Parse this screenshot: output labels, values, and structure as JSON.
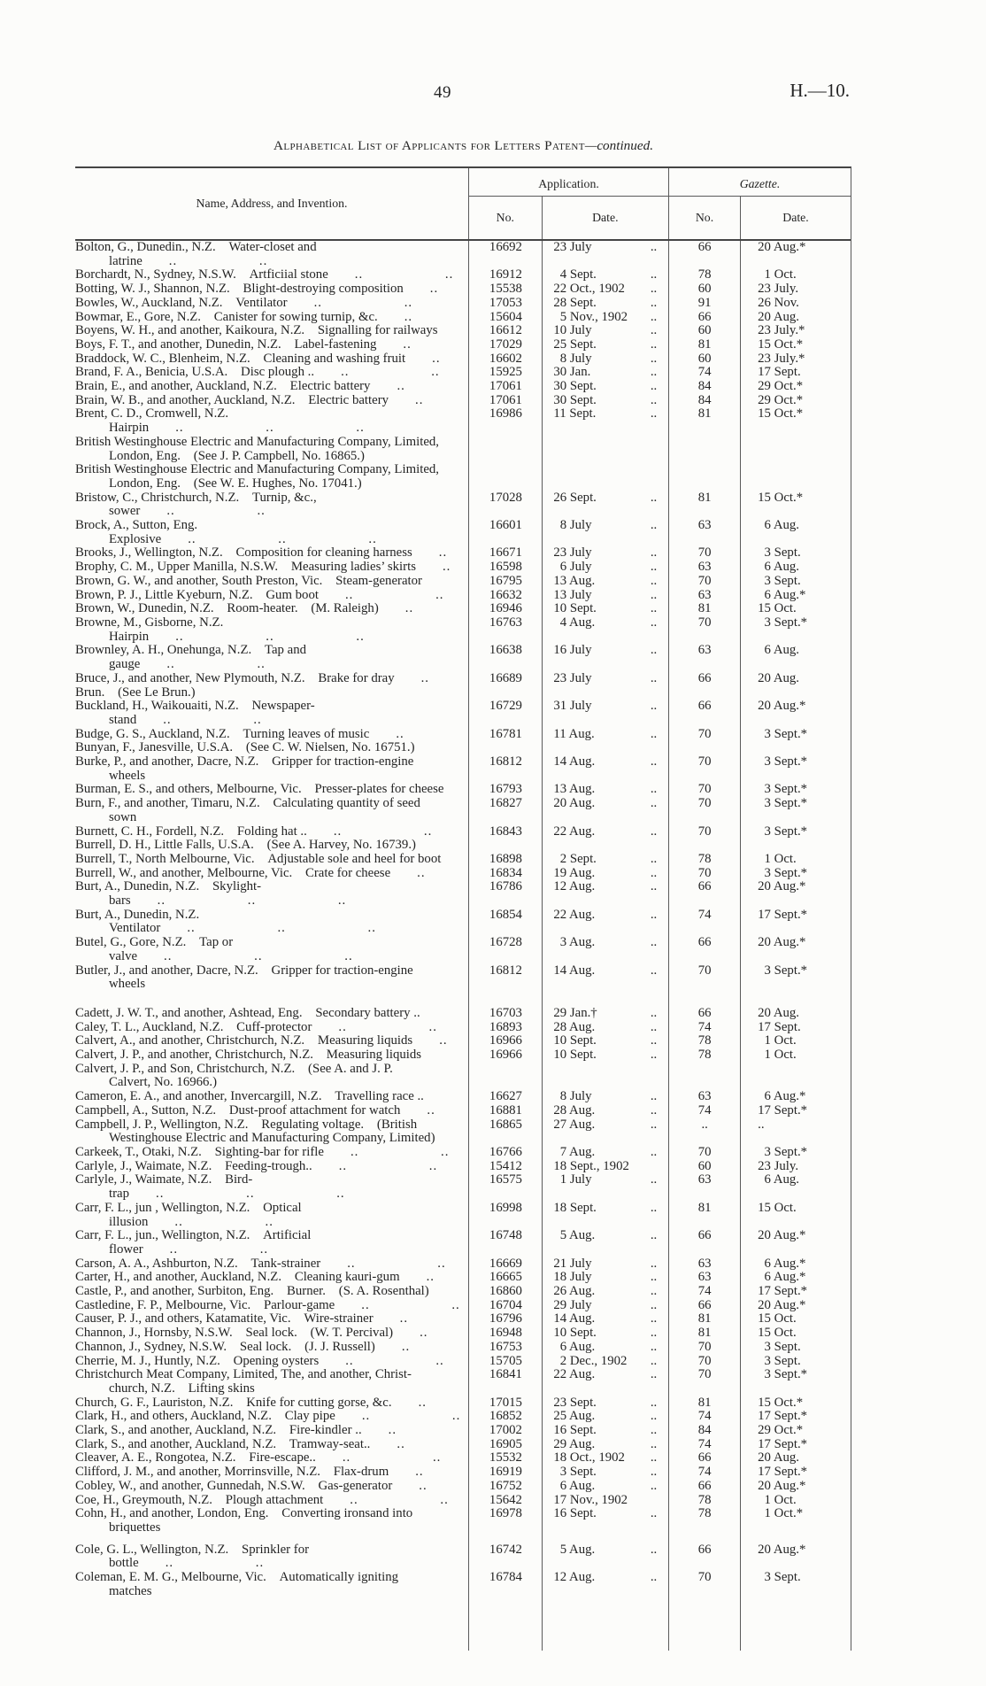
{
  "page": {
    "number": "49",
    "doc_ref": "H.—10."
  },
  "title": {
    "main": "Alphabetical List of Applicants for Letters Patent",
    "continued": "—continued."
  },
  "table": {
    "col_name_header": "Name, Address, and Invention.",
    "group_application": "Application.",
    "group_gazette": "Gazette.",
    "sub_app_no": "No.",
    "sub_app_date": "Date.",
    "sub_gaz_no": "No.",
    "sub_gaz_date": "Date.",
    "rows": [
      {
        "n": "Bolton, G., Dunedin., N.Z. Water-closet and latrine",
        "l": ".. ..",
        "an": "16692",
        "ad": "23 July",
        "adl": "..",
        "gn": "66",
        "gd": "20 Aug.*"
      },
      {
        "n": "Borchardt, N., Sydney, N.S.W. Artficiial stone",
        "l": ".. ..",
        "an": "16912",
        "ad": " 4 Sept.",
        "adl": "..",
        "gn": "78",
        "gd": " 1 Oct."
      },
      {
        "n": "Botting, W. J., Shannon, N.Z. Blight-destroying composition",
        "l": "..",
        "an": "15538",
        "ad": "22 Oct., 1902",
        "adl": "..",
        "gn": "60",
        "gd": "23 July."
      },
      {
        "n": "Bowles, W., Auckland, N.Z. Ventilator",
        "l": ".. ..",
        "an": "17053",
        "ad": "28 Sept.",
        "adl": "..",
        "gn": "91",
        "gd": "26 Nov."
      },
      {
        "n": "Bowmar, E., Gore, N.Z. Canister for sowing turnip, &c.",
        "l": "..",
        "an": "15604",
        "ad": " 5 Nov., 1902",
        "adl": "..",
        "gn": "66",
        "gd": "20 Aug."
      },
      {
        "n": "Boyens, W. H., and another, Kaikoura, N.Z. Signalling for railways",
        "l": "",
        "an": "16612",
        "ad": "10 July",
        "adl": "..",
        "gn": "60",
        "gd": "23 July.*"
      },
      {
        "n": "Boys, F. T., and another, Dunedin, N.Z. Label-fastening",
        "l": "..",
        "an": "17029",
        "ad": "25 Sept.",
        "adl": "..",
        "gn": "81",
        "gd": "15 Oct.*"
      },
      {
        "n": "Braddock, W. C., Blenheim, N.Z. Cleaning and washing fruit",
        "l": "..",
        "an": "16602",
        "ad": " 8 July",
        "adl": "..",
        "gn": "60",
        "gd": "23 July.*"
      },
      {
        "n": "Brand, F. A., Benicia, U.S.A. Disc plough ..",
        "l": ".. ..",
        "an": "15925",
        "ad": "30 Jan.",
        "adl": "..",
        "gn": "74",
        "gd": "17 Sept."
      },
      {
        "n": "Brain, E., and another, Auckland, N.Z. Electric battery",
        "l": "..",
        "an": "17061",
        "ad": "30 Sept.",
        "adl": "..",
        "gn": "84",
        "gd": "29 Oct.*"
      },
      {
        "n": "Brain, W. B., and another, Auckland, N.Z. Electric battery",
        "l": "..",
        "an": "17061",
        "ad": "30 Sept.",
        "adl": "..",
        "gn": "84",
        "gd": "29 Oct.*"
      },
      {
        "n": "Brent, C. D., Cromwell, N.Z. Hairpin",
        "l": ".. .. ..",
        "an": "16986",
        "ad": "11 Sept.",
        "adl": "..",
        "gn": "81",
        "gd": "15 Oct.*"
      },
      {
        "n": "British Westinghouse Electric and Manufacturing Company, Limited,",
        "n2": "London, Eng. (See J. P. Campbell, No. 16865.)"
      },
      {
        "n": "British Westinghouse Electric and Manufacturing Company, Limited,",
        "n2": "London, Eng. (See W. E. Hughes, No. 17041.)"
      },
      {
        "n": "Bristow, C., Christchurch, N.Z. Turnip, &c., sower",
        "l": ".. ..",
        "an": "17028",
        "ad": "26 Sept.",
        "adl": "..",
        "gn": "81",
        "gd": "15 Oct.*"
      },
      {
        "n": "Brock, A., Sutton, Eng. Explosive",
        "l": ".. .. ..",
        "an": "16601",
        "ad": " 8 July",
        "adl": "..",
        "gn": "63",
        "gd": " 6 Aug."
      },
      {
        "n": "Brooks, J., Wellington, N.Z. Composition for cleaning harness",
        "l": "..",
        "an": "16671",
        "ad": "23 July",
        "adl": "..",
        "gn": "70",
        "gd": " 3 Sept."
      },
      {
        "n": "Brophy, C. M., Upper Manilla, N.S.W. Measuring ladies’ skirts",
        "l": "..",
        "an": "16598",
        "ad": " 6 July",
        "adl": "..",
        "gn": "63",
        "gd": " 6 Aug."
      },
      {
        "n": "Brown, G. W., and another, South Preston, Vic. Steam-generator",
        "l": "",
        "an": "16795",
        "ad": "13 Aug.",
        "adl": "..",
        "gn": "70",
        "gd": " 3 Sept."
      },
      {
        "n": "Brown, P. J., Little Kyeburn, N.Z. Gum boot",
        "l": ".. ..",
        "an": "16632",
        "ad": "13 July",
        "adl": "..",
        "gn": "63",
        "gd": " 6 Aug.*"
      },
      {
        "n": "Brown, W., Dunedin, N.Z. Room-heater. (M. Raleigh)",
        "l": "..",
        "an": "16946",
        "ad": "10 Sept.",
        "adl": "..",
        "gn": "81",
        "gd": "15 Oct."
      },
      {
        "n": "Browne, M., Gisborne, N.Z. Hairpin",
        "l": ".. .. ..",
        "an": "16763",
        "ad": " 4 Aug.",
        "adl": "..",
        "gn": "70",
        "gd": " 3 Sept.*"
      },
      {
        "n": "Brownley, A. H., Onehunga, N.Z. Tap and gauge",
        "l": ".. ..",
        "an": "16638",
        "ad": "16 July",
        "adl": "..",
        "gn": "63",
        "gd": " 6 Aug."
      },
      {
        "n": "Bruce, J., and another, New Plymouth, N.Z. Brake for dray",
        "l": "..",
        "an": "16689",
        "ad": "23 July",
        "adl": "..",
        "gn": "66",
        "gd": "20 Aug."
      },
      {
        "n": "Brun. (See Le Brun.)"
      },
      {
        "n": "Buckland, H., Waikouaiti, N.Z. Newspaper-stand",
        "l": ".. ..",
        "an": "16729",
        "ad": "31 July",
        "adl": "..",
        "gn": "66",
        "gd": "20 Aug.*"
      },
      {
        "n": "Budge, G. S., Auckland, N.Z. Turning leaves of music",
        "l": "..",
        "an": "16781",
        "ad": "11 Aug.",
        "adl": "..",
        "gn": "70",
        "gd": " 3 Sept.*"
      },
      {
        "n": "Bunyan, F., Janesville, U.S.A. (See C. W. Nielsen, No. 16751.)"
      },
      {
        "n": "Burke, P., and another, Dacre, N.Z. Gripper for traction-engine",
        "n2": "wheels",
        "an": "16812",
        "ad": "14 Aug.",
        "adl": "..",
        "gn": "70",
        "gd": " 3 Sept.*"
      },
      {
        "n": "Burman, E. S., and others, Melbourne, Vic. Presser-plates for cheese",
        "an": "16793",
        "ad": "13 Aug.",
        "adl": "..",
        "gn": "70",
        "gd": " 3 Sept.*"
      },
      {
        "n": "Burn, F., and another, Timaru, N.Z. Calculating quantity of seed",
        "n2": "sown",
        "an": "16827",
        "ad": "20 Aug.",
        "adl": "..",
        "gn": "70",
        "gd": " 3 Sept.*"
      },
      {
        "n": "Burnett, C. H., Fordell, N.Z. Folding hat ..",
        "l": ".. ..",
        "an": "16843",
        "ad": "22 Aug.",
        "adl": "..",
        "gn": "70",
        "gd": " 3 Sept.*"
      },
      {
        "n": "Burrell, D. H., Little Falls, U.S.A. (See A. Harvey, No. 16739.)"
      },
      {
        "n": "Burrell, T., North Melbourne, Vic. Adjustable sole and heel for boot",
        "an": "16898",
        "ad": " 2 Sept.",
        "adl": "..",
        "gn": "78",
        "gd": " 1 Oct."
      },
      {
        "n": "Burrell, W., and another, Melbourne, Vic. Crate for cheese",
        "l": "..",
        "an": "16834",
        "ad": "19 Aug.",
        "adl": "..",
        "gn": "70",
        "gd": " 3 Sept.*"
      },
      {
        "n": "Burt, A., Dunedin, N.Z. Skylight-bars",
        "l": ".. .. ..",
        "an": "16786",
        "ad": "12 Aug.",
        "adl": "..",
        "gn": "66",
        "gd": "20 Aug.*"
      },
      {
        "n": "Burt, A., Dunedin, N.Z. Ventilator",
        "l": ".. .. ..",
        "an": "16854",
        "ad": "22 Aug.",
        "adl": "..",
        "gn": "74",
        "gd": "17 Sept.*"
      },
      {
        "n": "Butel, G., Gore, N.Z. Tap or valve",
        "l": ".. .. ..",
        "an": "16728",
        "ad": " 3 Aug.",
        "adl": "..",
        "gn": "66",
        "gd": "20 Aug.*"
      },
      {
        "n": "Butler, J., and another, Dacre, N.Z. Gripper for traction-engine",
        "n2": "wheels",
        "an": "16812",
        "ad": "14 Aug.",
        "adl": "..",
        "gn": "70",
        "gd": " 3 Sept.*"
      },
      {
        "gap": true,
        "n": "Cadett, J. W. T., and another, Ashtead, Eng. Secondary battery ..",
        "an": "16703",
        "ad": "29 Jan.†",
        "adl": "..",
        "gn": "66",
        "gd": "20 Aug."
      },
      {
        "n": "Caley, T. L., Auckland, N.Z. Cuff-protector",
        "l": ".. ..",
        "an": "16893",
        "ad": "28 Aug.",
        "adl": "..",
        "gn": "74",
        "gd": "17 Sept."
      },
      {
        "n": "Calvert, A., and another, Christchurch, N.Z. Measuring liquids",
        "l": "..",
        "an": "16966",
        "ad": "10 Sept.",
        "adl": "..",
        "gn": "78",
        "gd": " 1 Oct."
      },
      {
        "n": "Calvert, J. P., and another, Christchurch, N.Z. Measuring liquids",
        "an": "16966",
        "ad": "10 Sept.",
        "adl": "..",
        "gn": "78",
        "gd": " 1 Oct."
      },
      {
        "n": "Calvert, J. P., and Son, Christchurch, N.Z. (See A. and J. P.",
        "n2": "Calvert, No. 16966.)"
      },
      {
        "n": "Cameron, E. A., and another, Invercargill, N.Z. Travelling race ..",
        "an": "16627",
        "ad": " 8 July",
        "adl": "..",
        "gn": "63",
        "gd": " 6 Aug.*"
      },
      {
        "n": "Campbell, A., Sutton, N.Z. Dust-proof attachment for watch",
        "l": "..",
        "an": "16881",
        "ad": "28 Aug.",
        "adl": "..",
        "gn": "74",
        "gd": "17 Sept.*"
      },
      {
        "n": "Campbell, J. P., Wellington, N.Z. Regulating voltage. (British",
        "n2": "Westinghouse Electric and Manufacturing Company, Limited)",
        "an": "16865",
        "ad": "27 Aug.",
        "adl": "..",
        "gn": "..",
        "gd": ".."
      },
      {
        "n": "Carkeek, T., Otaki, N.Z. Sighting-bar for rifle",
        "l": ".. ..",
        "an": "16766",
        "ad": " 7 Aug.",
        "adl": "..",
        "gn": "70",
        "gd": " 3 Sept.*"
      },
      {
        "n": "Carlyle, J., Waimate, N.Z. Feeding-trough..",
        "l": ".. ..",
        "an": "15412",
        "ad": "18 Sept., 1902",
        "adl": "",
        "gn": "60",
        "gd": "23 July."
      },
      {
        "n": "Carlyle, J., Waimate, N.Z. Bird-trap",
        "l": ".. .. ..",
        "an": "16575",
        "ad": " 1 July",
        "adl": "..",
        "gn": "63",
        "gd": " 6 Aug."
      },
      {
        "n": "Carr, F. L., jun , Wellington, N.Z. Optical illusion",
        "l": ".. ..",
        "an": "16998",
        "ad": "18 Sept.",
        "adl": "..",
        "gn": "81",
        "gd": "15 Oct."
      },
      {
        "n": "Carr, F. L., jun., Wellington, N.Z. Artificial flower",
        "l": ".. ..",
        "an": "16748",
        "ad": " 5 Aug.",
        "adl": "..",
        "gn": "66",
        "gd": "20 Aug.*"
      },
      {
        "n": "Carson, A. A., Ashburton, N.Z. Tank-strainer",
        "l": ".. ..",
        "an": "16669",
        "ad": "21 July",
        "adl": "..",
        "gn": "63",
        "gd": " 6 Aug.*"
      },
      {
        "n": "Carter, H., and another, Auckland, N.Z. Cleaning kauri-gum",
        "l": "..",
        "an": "16665",
        "ad": "18 July",
        "adl": "..",
        "gn": "63",
        "gd": " 6 Aug.*"
      },
      {
        "n": "Castle, P., and another, Surbiton, Eng. Burner. (S. A. Rosenthal)",
        "an": "16860",
        "ad": "26 Aug.",
        "adl": "..",
        "gn": "74",
        "gd": "17 Sept.*"
      },
      {
        "n": "Castledine, F. P., Melbourne, Vic. Parlour-game",
        "l": ".. ..",
        "an": "16704",
        "ad": "29 July",
        "adl": "..",
        "gn": "66",
        "gd": "20 Aug.*"
      },
      {
        "n": "Causer, P. J., and others, Katamatite, Vic. Wire-strainer",
        "l": "..",
        "an": "16796",
        "ad": "14 Aug.",
        "adl": "..",
        "gn": "81",
        "gd": "15 Oct."
      },
      {
        "n": "Channon, J., Hornsby, N.S.W. Seal lock. (W. T. Percival)",
        "l": "..",
        "an": "16948",
        "ad": "10 Sept.",
        "adl": "..",
        "gn": "81",
        "gd": "15 Oct."
      },
      {
        "n": "Channon, J., Sydney, N.S.W. Seal lock. (J. J. Russell)",
        "l": "..",
        "an": "16753",
        "ad": " 6 Aug.",
        "adl": "..",
        "gn": "70",
        "gd": " 3 Sept."
      },
      {
        "n": "Cherrie, M. J., Huntly, N.Z. Opening oysters",
        "l": ".. ..",
        "an": "15705",
        "ad": " 2 Dec., 1902",
        "adl": "..",
        "gn": "70",
        "gd": " 3 Sept."
      },
      {
        "n": "Christchurch Meat Company, Limited, The, and another, Christ-",
        "n2": "church, N.Z. Lifting skins",
        "an": "16841",
        "ad": "22 Aug.",
        "adl": "..",
        "gn": "70",
        "gd": " 3 Sept.*"
      },
      {
        "n": "Church, G. F., Lauriston, N.Z. Knife for cutting gorse, &c.",
        "l": "..",
        "an": "17015",
        "ad": "23 Sept.",
        "adl": "..",
        "gn": "81",
        "gd": "15 Oct.*"
      },
      {
        "n": "Clark, H., and others, Auckland, N.Z. Clay pipe",
        "l": ".. ..",
        "an": "16852",
        "ad": "25 Aug.",
        "adl": "..",
        "gn": "74",
        "gd": "17 Sept.*"
      },
      {
        "n": "Clark, S., and another, Auckland, N.Z. Fire-kindler ..",
        "l": "..",
        "an": "17002",
        "ad": "16 Sept.",
        "adl": "..",
        "gn": "84",
        "gd": "29 Oct.*"
      },
      {
        "n": "Clark, S., and another, Auckland, N.Z. Tramway-seat..",
        "l": "..",
        "an": "16905",
        "ad": "29 Aug.",
        "adl": "..",
        "gn": "74",
        "gd": "17 Sept.*"
      },
      {
        "n": "Cleaver, A. E., Rongotea, N.Z. Fire-escape..",
        "l": ".. ..",
        "an": "15532",
        "ad": "18 Oct., 1902",
        "adl": "..",
        "gn": "66",
        "gd": "20 Aug."
      },
      {
        "n": "Clifford, J. M., and another, Morrinsville, N.Z. Flax-drum",
        "l": "..",
        "an": "16919",
        "ad": " 3 Sept.",
        "adl": "..",
        "gn": "74",
        "gd": "17 Sept.*"
      },
      {
        "n": "Cobley, W., and another, Gunnedah, N.S.W. Gas-generator",
        "l": "..",
        "an": "16752",
        "ad": " 6 Aug.",
        "adl": "..",
        "gn": "66",
        "gd": "20 Aug.*"
      },
      {
        "n": "Coe, H., Greymouth, N.Z. Plough attachment",
        "l": ".. ..",
        "an": "15642",
        "ad": "17 Nov., 1902",
        "adl": "",
        "gn": "78",
        "gd": " 1 Oct."
      },
      {
        "n": "Cohn, H., and another, London, Eng. Converting ironsand into",
        "n2": "briquettes",
        "an": "16978",
        "ad": "16 Sept.",
        "adl": "..",
        "gn": "78",
        "gd": " 1 Oct.*"
      },
      {
        "gapsm": true,
        "n": "Cole, G. L., Wellington, N.Z. Sprinkler for bottle",
        "l": ".. ..",
        "an": "16742",
        "ad": " 5 Aug.",
        "adl": "..",
        "gn": "66",
        "gd": "20 Aug.*"
      },
      {
        "n": "Coleman, E. M. G., Melbourne, Vic. Automatically igniting",
        "n2": "matches",
        "an": "16784",
        "ad": "12 Aug.",
        "adl": "..",
        "gn": "70",
        "gd": " 3 Sept."
      }
    ]
  }
}
